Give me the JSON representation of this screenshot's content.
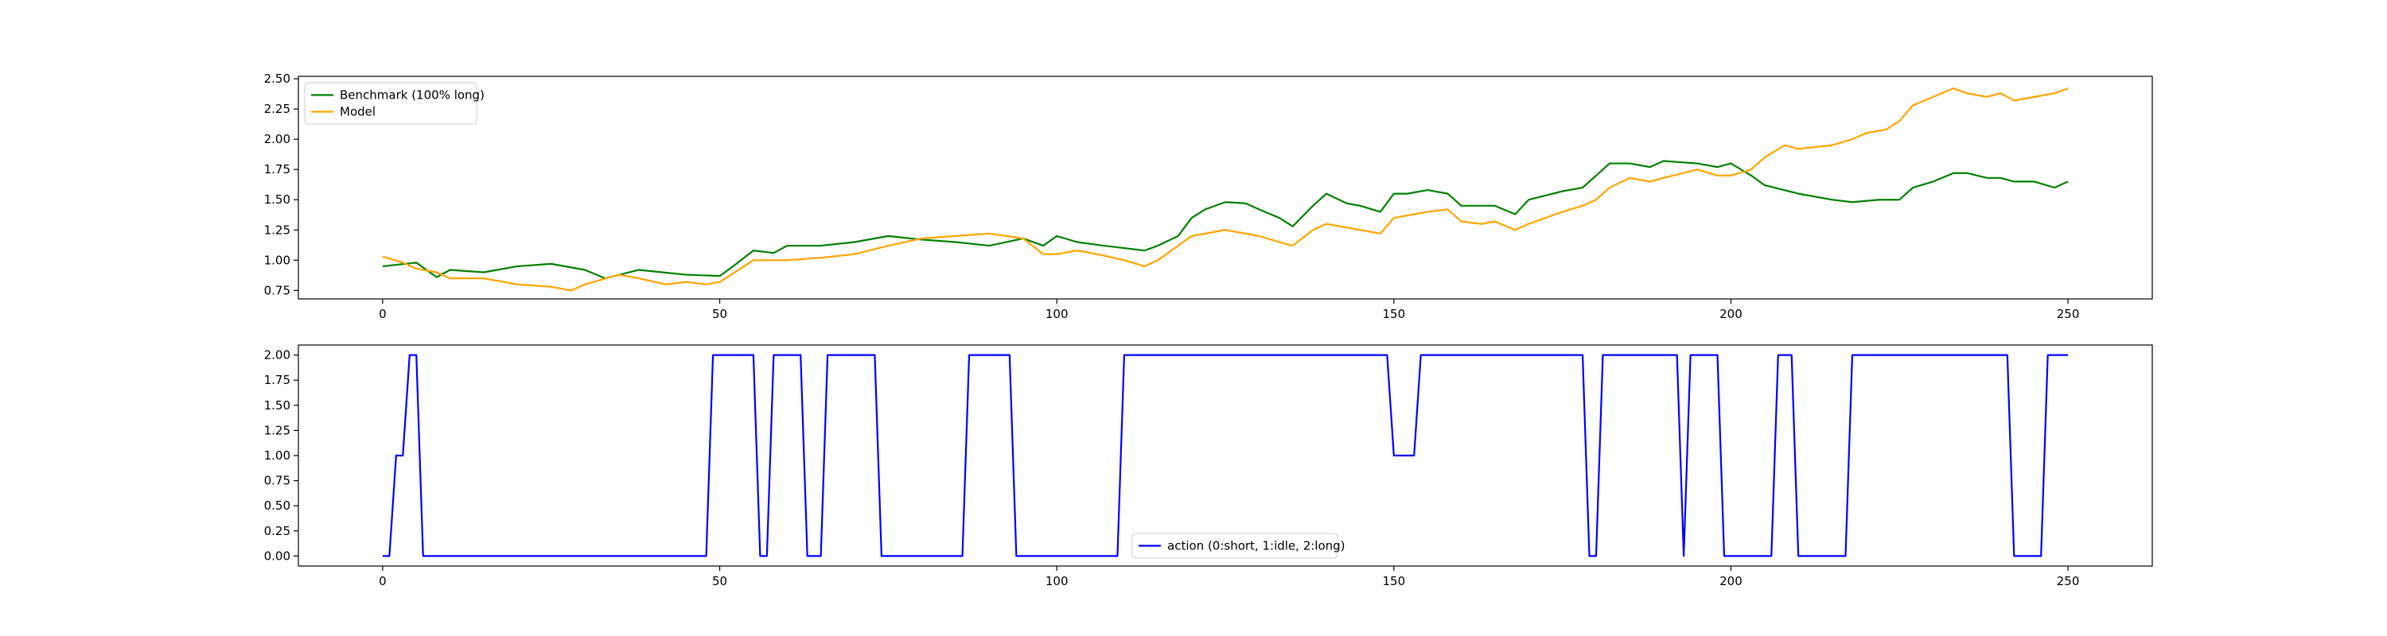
{
  "chart_data": [
    {
      "type": "line",
      "title": "",
      "xlabel": "",
      "ylabel": "",
      "xlim": [
        -12.5,
        262.5
      ],
      "ylim": [
        0.68,
        2.52
      ],
      "xticks": [
        0,
        50,
        100,
        150,
        200,
        250
      ],
      "xtick_labels": [
        "0",
        "50",
        "100",
        "150",
        "200",
        "250"
      ],
      "yticks": [
        0.75,
        1.0,
        1.25,
        1.5,
        1.75,
        2.0,
        2.25,
        2.5
      ],
      "ytick_labels": [
        "0.75",
        "1.00",
        "1.25",
        "1.50",
        "1.75",
        "2.00",
        "2.25",
        "2.50"
      ],
      "grid": false,
      "legend_position": "upper-left",
      "series": [
        {
          "name": "Benchmark (100% long)",
          "color": "#008000",
          "points": [
            [
              0,
              0.95
            ],
            [
              5,
              0.98
            ],
            [
              8,
              0.86
            ],
            [
              10,
              0.92
            ],
            [
              15,
              0.9
            ],
            [
              20,
              0.95
            ],
            [
              25,
              0.97
            ],
            [
              30,
              0.92
            ],
            [
              33,
              0.85
            ],
            [
              38,
              0.92
            ],
            [
              45,
              0.88
            ],
            [
              50,
              0.87
            ],
            [
              52,
              0.95
            ],
            [
              55,
              1.08
            ],
            [
              58,
              1.06
            ],
            [
              60,
              1.12
            ],
            [
              65,
              1.12
            ],
            [
              70,
              1.15
            ],
            [
              75,
              1.2
            ],
            [
              80,
              1.17
            ],
            [
              85,
              1.15
            ],
            [
              90,
              1.12
            ],
            [
              95,
              1.18
            ],
            [
              98,
              1.12
            ],
            [
              100,
              1.2
            ],
            [
              103,
              1.15
            ],
            [
              107,
              1.12
            ],
            [
              110,
              1.1
            ],
            [
              113,
              1.08
            ],
            [
              115,
              1.12
            ],
            [
              118,
              1.2
            ],
            [
              120,
              1.35
            ],
            [
              122,
              1.42
            ],
            [
              125,
              1.48
            ],
            [
              128,
              1.47
            ],
            [
              130,
              1.42
            ],
            [
              133,
              1.35
            ],
            [
              135,
              1.28
            ],
            [
              138,
              1.45
            ],
            [
              140,
              1.55
            ],
            [
              143,
              1.47
            ],
            [
              145,
              1.45
            ],
            [
              148,
              1.4
            ],
            [
              150,
              1.55
            ],
            [
              152,
              1.55
            ],
            [
              155,
              1.58
            ],
            [
              158,
              1.55
            ],
            [
              160,
              1.45
            ],
            [
              165,
              1.45
            ],
            [
              168,
              1.38
            ],
            [
              170,
              1.5
            ],
            [
              175,
              1.57
            ],
            [
              178,
              1.6
            ],
            [
              180,
              1.7
            ],
            [
              182,
              1.8
            ],
            [
              185,
              1.8
            ],
            [
              188,
              1.77
            ],
            [
              190,
              1.82
            ],
            [
              195,
              1.8
            ],
            [
              198,
              1.77
            ],
            [
              200,
              1.8
            ],
            [
              203,
              1.7
            ],
            [
              205,
              1.62
            ],
            [
              210,
              1.55
            ],
            [
              215,
              1.5
            ],
            [
              218,
              1.48
            ],
            [
              222,
              1.5
            ],
            [
              225,
              1.5
            ],
            [
              227,
              1.6
            ],
            [
              230,
              1.65
            ],
            [
              233,
              1.72
            ],
            [
              235,
              1.72
            ],
            [
              238,
              1.68
            ],
            [
              240,
              1.68
            ],
            [
              242,
              1.65
            ],
            [
              245,
              1.65
            ],
            [
              248,
              1.6
            ],
            [
              250,
              1.65
            ]
          ]
        },
        {
          "name": "Model",
          "color": "#FFA500",
          "points": [
            [
              0,
              1.03
            ],
            [
              3,
              0.98
            ],
            [
              5,
              0.93
            ],
            [
              8,
              0.9
            ],
            [
              10,
              0.85
            ],
            [
              15,
              0.85
            ],
            [
              20,
              0.8
            ],
            [
              25,
              0.78
            ],
            [
              28,
              0.75
            ],
            [
              30,
              0.8
            ],
            [
              35,
              0.88
            ],
            [
              38,
              0.85
            ],
            [
              42,
              0.8
            ],
            [
              45,
              0.82
            ],
            [
              48,
              0.8
            ],
            [
              50,
              0.82
            ],
            [
              55,
              1.0
            ],
            [
              60,
              1.0
            ],
            [
              65,
              1.02
            ],
            [
              70,
              1.05
            ],
            [
              75,
              1.12
            ],
            [
              80,
              1.18
            ],
            [
              85,
              1.2
            ],
            [
              90,
              1.22
            ],
            [
              95,
              1.18
            ],
            [
              98,
              1.05
            ],
            [
              100,
              1.05
            ],
            [
              103,
              1.08
            ],
            [
              106,
              1.05
            ],
            [
              110,
              1.0
            ],
            [
              113,
              0.95
            ],
            [
              115,
              1.0
            ],
            [
              118,
              1.12
            ],
            [
              120,
              1.2
            ],
            [
              125,
              1.25
            ],
            [
              130,
              1.2
            ],
            [
              133,
              1.15
            ],
            [
              135,
              1.12
            ],
            [
              138,
              1.25
            ],
            [
              140,
              1.3
            ],
            [
              145,
              1.25
            ],
            [
              148,
              1.22
            ],
            [
              150,
              1.35
            ],
            [
              155,
              1.4
            ],
            [
              158,
              1.42
            ],
            [
              160,
              1.32
            ],
            [
              163,
              1.3
            ],
            [
              165,
              1.32
            ],
            [
              168,
              1.25
            ],
            [
              170,
              1.3
            ],
            [
              175,
              1.4
            ],
            [
              178,
              1.45
            ],
            [
              180,
              1.5
            ],
            [
              182,
              1.6
            ],
            [
              185,
              1.68
            ],
            [
              188,
              1.65
            ],
            [
              190,
              1.68
            ],
            [
              195,
              1.75
            ],
            [
              198,
              1.7
            ],
            [
              200,
              1.7
            ],
            [
              203,
              1.75
            ],
            [
              205,
              1.85
            ],
            [
              208,
              1.95
            ],
            [
              210,
              1.92
            ],
            [
              215,
              1.95
            ],
            [
              218,
              2.0
            ],
            [
              220,
              2.05
            ],
            [
              223,
              2.08
            ],
            [
              225,
              2.15
            ],
            [
              227,
              2.28
            ],
            [
              230,
              2.35
            ],
            [
              233,
              2.42
            ],
            [
              235,
              2.38
            ],
            [
              238,
              2.35
            ],
            [
              240,
              2.38
            ],
            [
              242,
              2.32
            ],
            [
              245,
              2.35
            ],
            [
              248,
              2.38
            ],
            [
              250,
              2.42
            ]
          ]
        }
      ]
    },
    {
      "type": "line",
      "title": "",
      "xlabel": "",
      "ylabel": "",
      "xlim": [
        -12.5,
        262.5
      ],
      "ylim": [
        -0.1,
        2.1
      ],
      "xticks": [
        0,
        50,
        100,
        150,
        200,
        250
      ],
      "xtick_labels": [
        "0",
        "50",
        "100",
        "150",
        "200",
        "250"
      ],
      "yticks": [
        0.0,
        0.25,
        0.5,
        0.75,
        1.0,
        1.25,
        1.5,
        1.75,
        2.0
      ],
      "ytick_labels": [
        "0.00",
        "0.25",
        "0.50",
        "0.75",
        "1.00",
        "1.25",
        "1.50",
        "1.75",
        "2.00"
      ],
      "grid": false,
      "legend_position": "lower-center",
      "series": [
        {
          "name": "action (0:short, 1:idle, 2:long)",
          "color": "#0000FF",
          "points": [
            [
              0,
              0
            ],
            [
              1,
              0
            ],
            [
              2,
              1
            ],
            [
              3,
              1
            ],
            [
              4,
              2
            ],
            [
              5,
              2
            ],
            [
              6,
              0
            ],
            [
              48,
              0
            ],
            [
              49,
              2
            ],
            [
              55,
              2
            ],
            [
              56,
              0
            ],
            [
              57,
              0
            ],
            [
              58,
              2
            ],
            [
              62,
              2
            ],
            [
              63,
              0
            ],
            [
              65,
              0
            ],
            [
              66,
              2
            ],
            [
              73,
              2
            ],
            [
              74,
              0
            ],
            [
              86,
              0
            ],
            [
              87,
              2
            ],
            [
              93,
              2
            ],
            [
              94,
              0
            ],
            [
              109,
              0
            ],
            [
              110,
              2
            ],
            [
              149,
              2
            ],
            [
              150,
              1
            ],
            [
              153,
              1
            ],
            [
              154,
              2
            ],
            [
              178,
              2
            ],
            [
              179,
              0
            ],
            [
              180,
              0
            ],
            [
              181,
              2
            ],
            [
              192,
              2
            ],
            [
              193,
              0
            ],
            [
              194,
              2
            ],
            [
              198,
              2
            ],
            [
              199,
              0
            ],
            [
              206,
              0
            ],
            [
              207,
              2
            ],
            [
              209,
              2
            ],
            [
              210,
              0
            ],
            [
              217,
              0
            ],
            [
              218,
              2
            ],
            [
              241,
              2
            ],
            [
              242,
              0
            ],
            [
              246,
              0
            ],
            [
              247,
              2
            ],
            [
              250,
              2
            ]
          ]
        }
      ]
    }
  ]
}
